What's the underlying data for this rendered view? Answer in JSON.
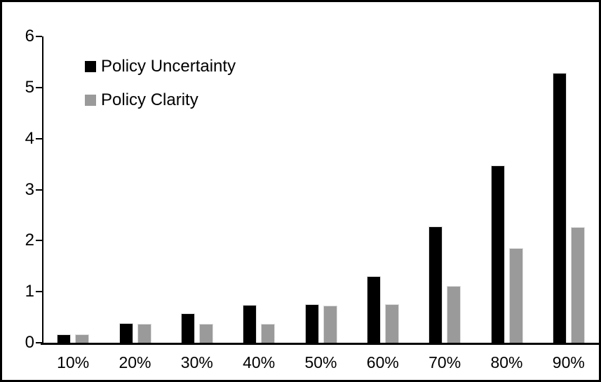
{
  "chart_data": {
    "type": "bar",
    "title": "",
    "xlabel": "",
    "ylabel": "",
    "categories": [
      "10%",
      "20%",
      "30%",
      "40%",
      "50%",
      "60%",
      "70%",
      "80%",
      "90%"
    ],
    "series": [
      {
        "name": "Policy Uncertainty",
        "color": "#000000",
        "values": [
          0.17,
          0.38,
          0.57,
          0.74,
          0.75,
          1.31,
          2.28,
          3.47,
          5.28
        ]
      },
      {
        "name": "Policy Clarity",
        "color": "#9a9a9a",
        "values": [
          0.16,
          0.37,
          0.37,
          0.37,
          0.73,
          0.75,
          1.11,
          1.86,
          2.27
        ]
      }
    ],
    "ylim": [
      0,
      6
    ],
    "yticks": [
      0,
      1,
      2,
      3,
      4,
      5,
      6
    ],
    "grid": "off",
    "legend_position": "top-left-inside"
  },
  "frame": {
    "border_color": "#000000",
    "background_color": "#ffffff",
    "axis_color": "#000000"
  }
}
